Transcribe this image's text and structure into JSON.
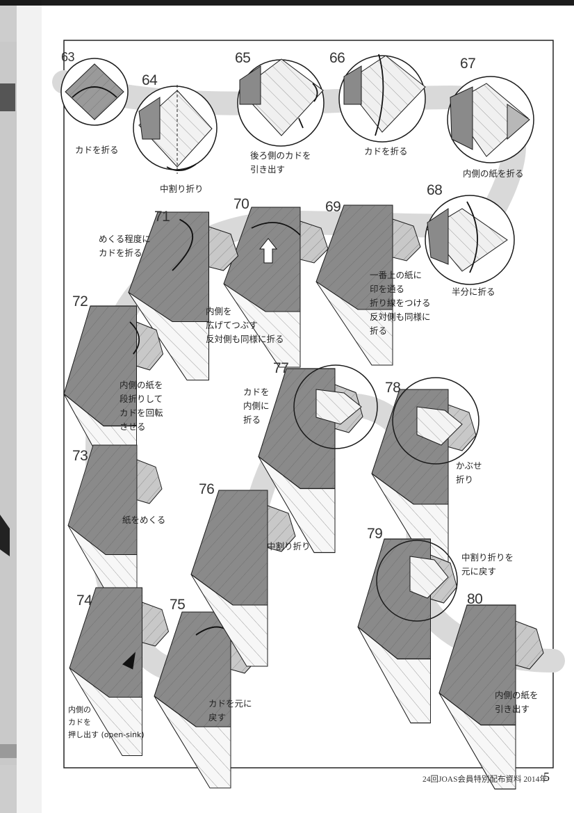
{
  "steps": {
    "s63": {
      "num": "63",
      "caption": "カドを折る"
    },
    "s64": {
      "num": "64",
      "caption": "中割り折り"
    },
    "s65": {
      "num": "65",
      "caption": "後ろ側のカドを\n引き出す"
    },
    "s66": {
      "num": "66",
      "caption": "カドを折る"
    },
    "s67": {
      "num": "67",
      "caption": "内側の紙を折る"
    },
    "s68": {
      "num": "68",
      "caption": "半分に折る"
    },
    "s69": {
      "num": "69",
      "caption": "一番上の紙に\n印を通る\n折り線をつける\n反対側も同様に\n折る"
    },
    "s70": {
      "num": "70",
      "caption": "内側を\n広げてつぶす\n反対側も同様に折る"
    },
    "s71": {
      "num": "71",
      "caption": "めくる程度に\nカドを折る"
    },
    "s72": {
      "num": "72",
      "caption": "内側の紙を\n段折りして\nカドを回転\nさせる"
    },
    "s73": {
      "num": "73",
      "caption": "紙をめくる"
    },
    "s74": {
      "num": "74",
      "caption": "内側の\nカドを\n押し出す (open-sink)"
    },
    "s75": {
      "num": "75",
      "caption": "カドを元に\n戻す"
    },
    "s76": {
      "num": "76",
      "caption": "中割り折り"
    },
    "s77": {
      "num": "77",
      "caption": "カドを\n内側に\n折る"
    },
    "s78": {
      "num": "78",
      "caption": "かぶせ\n折り"
    },
    "s79": {
      "num": "79",
      "caption": "中割り折りを\n元に戻す"
    },
    "s80": {
      "num": "80",
      "caption": "内側の紙を\n引き出す"
    }
  },
  "footer": {
    "source": "24回JOAS会員特別配布資料 2014年",
    "page": "5"
  },
  "colors": {
    "paper_dark": "#8a8a8a",
    "paper_mid": "#b4b4b4",
    "paper_light": "#f4f4f4",
    "path_band": "#d9d9d9",
    "outline": "#1a1a1a"
  }
}
